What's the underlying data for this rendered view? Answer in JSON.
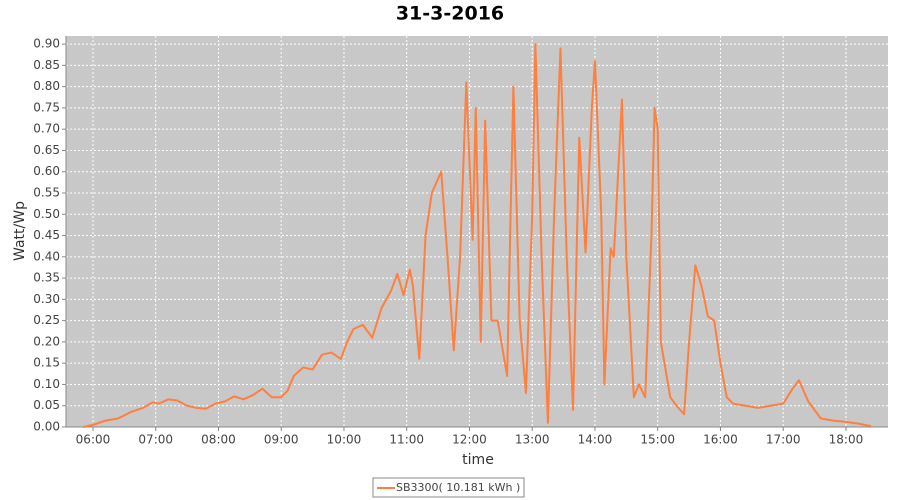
{
  "chart_data": {
    "type": "line",
    "title": "31-3-2016",
    "x_label": "time",
    "y_label": "Watt/Wp",
    "xlim": [
      5.57,
      18.67
    ],
    "ylim": [
      0,
      0.919
    ],
    "xticks": [
      {
        "value": 6,
        "label": "06:00"
      },
      {
        "value": 7,
        "label": "07:00"
      },
      {
        "value": 8,
        "label": "08:00"
      },
      {
        "value": 9,
        "label": "09:00"
      },
      {
        "value": 10,
        "label": "10:00"
      },
      {
        "value": 11,
        "label": "11:00"
      },
      {
        "value": 12,
        "label": "12:00"
      },
      {
        "value": 13,
        "label": "13:00"
      },
      {
        "value": 14,
        "label": "14:00"
      },
      {
        "value": 15,
        "label": "15:00"
      },
      {
        "value": 16,
        "label": "16:00"
      },
      {
        "value": 17,
        "label": "17:00"
      },
      {
        "value": 18,
        "label": "18:00"
      }
    ],
    "yticks": [
      {
        "value": 0,
        "label": "0.00"
      },
      0.05,
      {
        "value": 0.1,
        "label": "0.10"
      },
      0.15,
      {
        "value": 0.2,
        "label": "0.20"
      },
      0.25,
      {
        "value": 0.3,
        "label": "0.30"
      },
      0.35,
      {
        "value": 0.4,
        "label": "0.40"
      },
      0.45,
      {
        "value": 0.5,
        "label": "0.50"
      },
      0.55,
      {
        "value": 0.6,
        "label": "0.60"
      },
      0.65,
      {
        "value": 0.7,
        "label": "0.70"
      },
      0.75,
      {
        "value": 0.8,
        "label": "0.80"
      },
      0.85,
      {
        "value": 0.9,
        "label": "0.90"
      }
    ],
    "grid": true,
    "x": [
      5.85,
      6.0,
      6.2,
      6.4,
      6.6,
      6.8,
      6.95,
      7.05,
      7.2,
      7.35,
      7.5,
      7.65,
      7.8,
      7.95,
      8.1,
      8.25,
      8.4,
      8.55,
      8.7,
      8.85,
      9.0,
      9.1,
      9.2,
      9.35,
      9.5,
      9.65,
      9.8,
      9.95,
      10.05,
      10.15,
      10.3,
      10.45,
      10.6,
      10.75,
      10.85,
      10.95,
      11.05,
      11.1,
      11.2,
      11.3,
      11.4,
      11.55,
      11.65,
      11.75,
      11.85,
      11.95,
      12.05,
      12.1,
      12.18,
      12.25,
      12.35,
      12.45,
      12.6,
      12.7,
      12.8,
      12.9,
      13.0,
      13.05,
      13.15,
      13.25,
      13.35,
      13.45,
      13.55,
      13.65,
      13.75,
      13.85,
      13.95,
      14.0,
      14.1,
      14.15,
      14.25,
      14.3,
      14.43,
      14.5,
      14.62,
      14.7,
      14.8,
      14.9,
      14.95,
      15.0,
      15.05,
      15.2,
      15.3,
      15.42,
      15.5,
      15.6,
      15.7,
      15.8,
      15.9,
      16.0,
      16.1,
      16.2,
      16.4,
      16.6,
      16.8,
      17.0,
      17.15,
      17.25,
      17.4,
      17.6,
      17.8,
      18.0,
      18.2,
      18.4
    ],
    "series": [
      {
        "name": "SB3300( 10.181 kWh )",
        "color": "#ff7f3f",
        "values": [
          0.0,
          0.005,
          0.015,
          0.02,
          0.035,
          0.045,
          0.058,
          0.055,
          0.065,
          0.062,
          0.05,
          0.045,
          0.043,
          0.055,
          0.06,
          0.072,
          0.065,
          0.075,
          0.09,
          0.07,
          0.07,
          0.085,
          0.12,
          0.14,
          0.135,
          0.17,
          0.175,
          0.16,
          0.2,
          0.23,
          0.24,
          0.21,
          0.28,
          0.32,
          0.36,
          0.31,
          0.37,
          0.33,
          0.16,
          0.45,
          0.55,
          0.6,
          0.4,
          0.18,
          0.4,
          0.81,
          0.44,
          0.75,
          0.2,
          0.72,
          0.25,
          0.25,
          0.12,
          0.8,
          0.25,
          0.08,
          0.5,
          0.9,
          0.4,
          0.01,
          0.5,
          0.89,
          0.4,
          0.04,
          0.68,
          0.41,
          0.75,
          0.86,
          0.5,
          0.1,
          0.42,
          0.4,
          0.77,
          0.4,
          0.07,
          0.1,
          0.07,
          0.45,
          0.75,
          0.7,
          0.2,
          0.07,
          0.05,
          0.03,
          0.2,
          0.38,
          0.33,
          0.26,
          0.25,
          0.15,
          0.07,
          0.055,
          0.05,
          0.045,
          0.05,
          0.055,
          0.09,
          0.11,
          0.06,
          0.02,
          0.015,
          0.012,
          0.008,
          0.002
        ]
      }
    ]
  }
}
